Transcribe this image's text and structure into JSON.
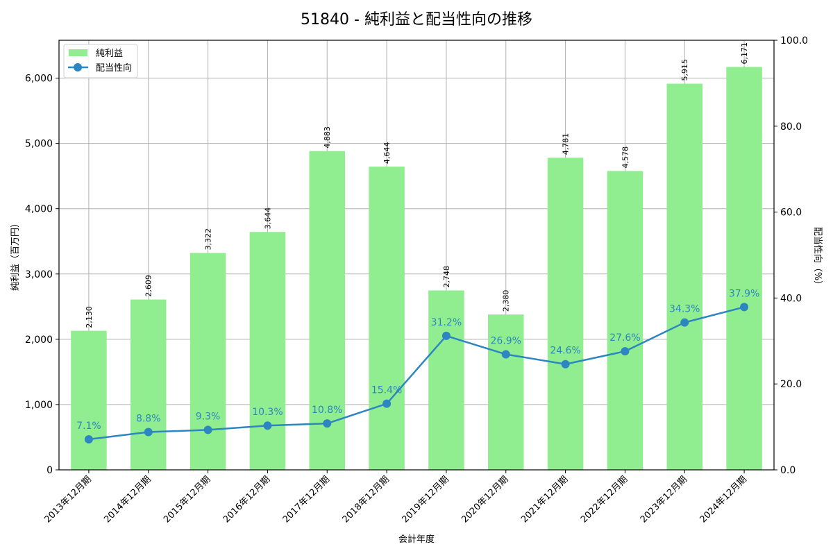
{
  "chart_data": {
    "type": "bar+line",
    "title": "51840 - 純利益と配当性向の推移",
    "xlabel": "会計年度",
    "ylabel": "純利益（百万円）",
    "y2label": "配当性向（%）",
    "categories": [
      "2013年12月期",
      "2014年12月期",
      "2015年12月期",
      "2016年12月期",
      "2017年12月期",
      "2018年12月期",
      "2019年12月期",
      "2020年12月期",
      "2021年12月期",
      "2022年12月期",
      "2023年12月期",
      "2024年12月期"
    ],
    "series": [
      {
        "name": "純利益",
        "type": "bar",
        "axis": "left",
        "color": "#90ee90",
        "values": [
          2130,
          2609,
          3322,
          3644,
          4883,
          4644,
          2748,
          2380,
          4781,
          4578,
          5915,
          6171
        ],
        "labels": [
          "2,130",
          "2,609",
          "3,322",
          "3,644",
          "4,883",
          "4,644",
          "2,748",
          "2,380",
          "4,781",
          "4,578",
          "5,915",
          "6,171"
        ]
      },
      {
        "name": "配当性向",
        "type": "line",
        "axis": "right",
        "color": "#2e86c1",
        "values": [
          7.1,
          8.8,
          9.3,
          10.3,
          10.8,
          15.4,
          31.2,
          26.9,
          24.6,
          27.6,
          34.3,
          37.9
        ],
        "labels": [
          "7.1%",
          "8.8%",
          "9.3%",
          "10.3%",
          "10.8%",
          "15.4%",
          "31.2%",
          "26.9%",
          "24.6%",
          "27.6%",
          "34.3%",
          "37.9%"
        ]
      }
    ],
    "ylim": [
      0,
      6580
    ],
    "y2lim": [
      0,
      100
    ],
    "yticks": [
      0,
      1000,
      2000,
      3000,
      4000,
      5000,
      6000
    ],
    "ytick_labels": [
      "0",
      "1,000",
      "2,000",
      "3,000",
      "4,000",
      "5,000",
      "6,000"
    ],
    "y2ticks": [
      0,
      20,
      40,
      60,
      80,
      100
    ],
    "y2tick_labels": [
      "0.0",
      "20.0",
      "40.0",
      "60.0",
      "80.0",
      "100.0"
    ],
    "grid": true,
    "legend_position": "upper left"
  }
}
